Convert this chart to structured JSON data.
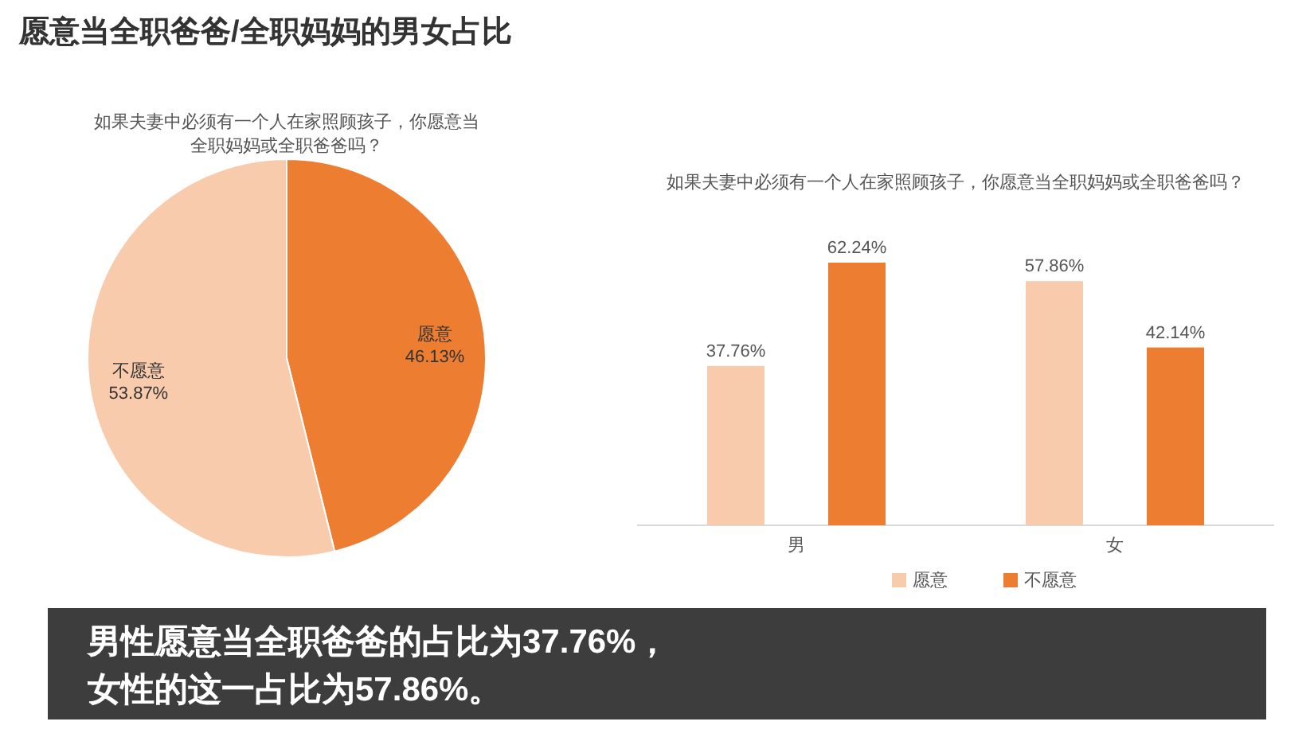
{
  "chart_data": [
    {
      "type": "pie",
      "title": "愿意当全职爸爸/全职妈妈的男女占比",
      "subtitle": "如果夫妻中必须有一个人在家照顾孩子，你愿意当全职妈妈或全职爸爸吗？",
      "categories": [
        "愿意",
        "不愿意"
      ],
      "values": [
        46.13,
        53.87
      ],
      "colors": [
        "#ed7d31",
        "#f8cbad"
      ],
      "value_labels": [
        "46.13%",
        "53.87%"
      ],
      "annotations": [
        "男性愿意当全职爸爸的占比为37.76%，女性的这一占比为57.86%。"
      ]
    },
    {
      "type": "bar",
      "title": "如果夫妻中必须有一个人在家照顾孩子，你愿意当全职妈妈或全职爸爸吗？",
      "categories": [
        "男",
        "女"
      ],
      "series": [
        {
          "name": "愿意",
          "color": "#f8cbad",
          "values": [
            37.76,
            57.86
          ],
          "value_labels": [
            "37.76%",
            "57.86%"
          ]
        },
        {
          "name": "不愿意",
          "color": "#ed7d31",
          "values": [
            62.24,
            42.14
          ],
          "value_labels": [
            "62.24%",
            "42.14%"
          ]
        }
      ],
      "legend": "bottom"
    }
  ]
}
